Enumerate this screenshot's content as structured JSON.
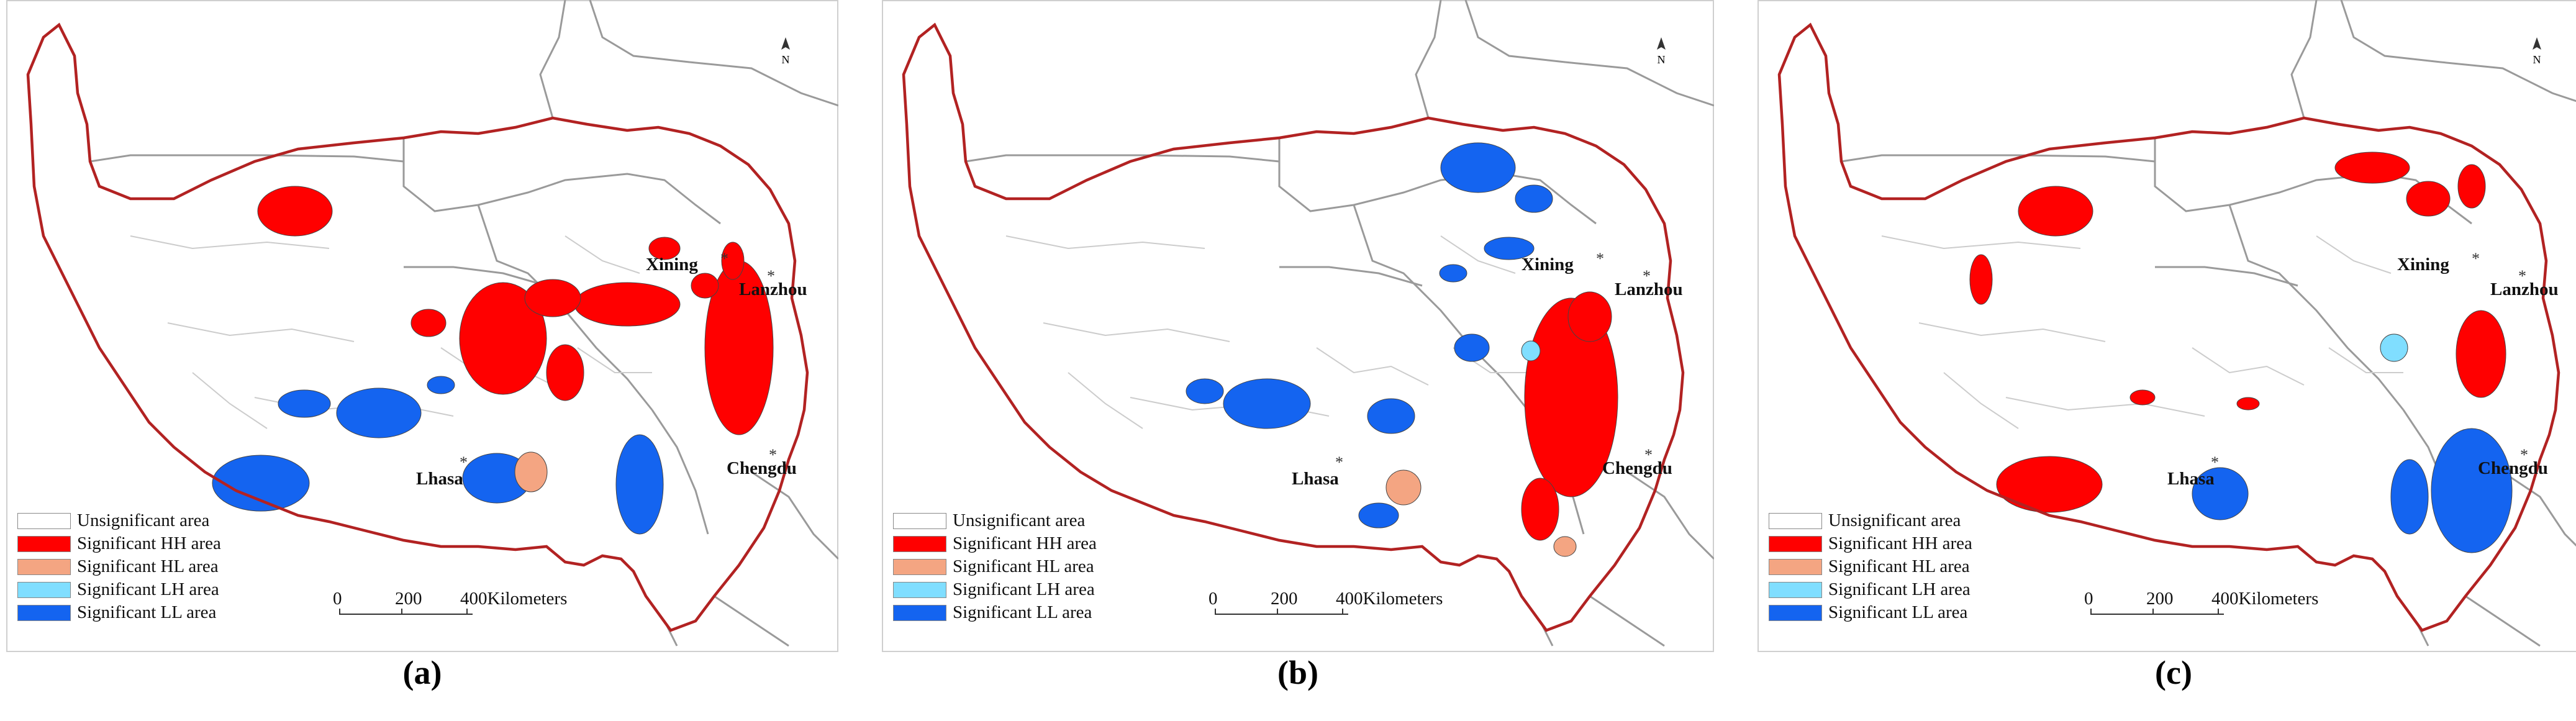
{
  "figure": {
    "panels": [
      {
        "label": "(a)",
        "cities": {
          "xining": "Xining",
          "lanzhou": "Lanzhou",
          "chengdu": "Chengdu",
          "lhasa": "Lhasa"
        }
      },
      {
        "label": "(b)",
        "cities": {
          "xining": "Xining",
          "lanzhou": "Lanzhou",
          "chengdu": "Chengdu",
          "lhasa": "Lhasa"
        }
      },
      {
        "label": "(c)",
        "cities": {
          "xining": "Xining",
          "lanzhou": "Lanzhou",
          "chengdu": "Chengdu",
          "lhasa": "Lhasa"
        }
      }
    ],
    "legend": [
      {
        "label": "Unsignificant area",
        "color": "#ffffff"
      },
      {
        "label": "Significant HH area",
        "color": "#ff0000"
      },
      {
        "label": "Significant HL area",
        "color": "#f4a582"
      },
      {
        "label": "Significant LH area",
        "color": "#80deff"
      },
      {
        "label": "Significant LL area",
        "color": "#1464f0"
      }
    ],
    "scalebar": {
      "ticks": [
        "0",
        "200",
        "400"
      ],
      "unit": "Kilometers"
    },
    "north_arrow": "N",
    "colors": {
      "boundary": "#b22222",
      "province_lines": "#9a9a9a",
      "county_lines": "#cccccc"
    }
  }
}
